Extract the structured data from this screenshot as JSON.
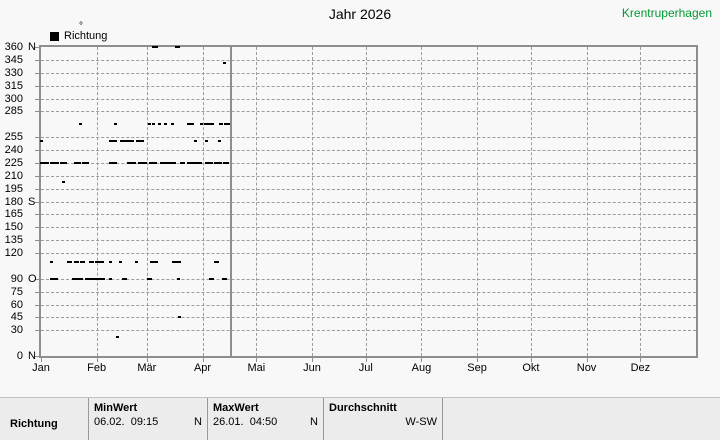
{
  "header": {
    "title": "Jahr 2026",
    "station": "Krentruperhagen",
    "station_color": "#009933",
    "unit": "°",
    "legend": {
      "label": "Richtung",
      "marker_color": "#000000"
    }
  },
  "chart_data": {
    "type": "scatter",
    "title": "Jahr 2026",
    "series_name": "Richtung",
    "ylabel": "°",
    "ylim": [
      0,
      360
    ],
    "x_axis": "day of year, Jan-Dez",
    "xlim_days": [
      0,
      365
    ],
    "grid": true,
    "point_color": "#000000",
    "grid_color": "#9c9c9c",
    "frame_color": "#8e8e8e",
    "current_date_line_day": 105.5,
    "y_ticks": [
      {
        "value": 360,
        "num": "360",
        "letter": "N"
      },
      {
        "value": 345,
        "num": "345",
        "letter": ""
      },
      {
        "value": 330,
        "num": "330",
        "letter": ""
      },
      {
        "value": 315,
        "num": "315",
        "letter": ""
      },
      {
        "value": 300,
        "num": "300",
        "letter": ""
      },
      {
        "value": 285,
        "num": "285",
        "letter": ""
      },
      {
        "value": 255,
        "num": "255",
        "letter": ""
      },
      {
        "value": 240,
        "num": "240",
        "letter": ""
      },
      {
        "value": 225,
        "num": "225",
        "letter": ""
      },
      {
        "value": 210,
        "num": "210",
        "letter": ""
      },
      {
        "value": 195,
        "num": "195",
        "letter": ""
      },
      {
        "value": 180,
        "num": "180",
        "letter": "S"
      },
      {
        "value": 165,
        "num": "165",
        "letter": ""
      },
      {
        "value": 150,
        "num": "150",
        "letter": ""
      },
      {
        "value": 135,
        "num": "135",
        "letter": ""
      },
      {
        "value": 120,
        "num": "120",
        "letter": ""
      },
      {
        "value": 90,
        "num": "90",
        "letter": "O"
      },
      {
        "value": 75,
        "num": "75",
        "letter": ""
      },
      {
        "value": 60,
        "num": "60",
        "letter": ""
      },
      {
        "value": 45,
        "num": "45",
        "letter": ""
      },
      {
        "value": 30,
        "num": "30",
        "letter": ""
      },
      {
        "value": 0,
        "num": "0",
        "letter": "N"
      }
    ],
    "months": [
      {
        "label": "Jan",
        "day": 0
      },
      {
        "label": "Feb",
        "day": 31
      },
      {
        "label": "Mär",
        "day": 59
      },
      {
        "label": "Apr",
        "day": 90
      },
      {
        "label": "Mai",
        "day": 120
      },
      {
        "label": "Jun",
        "day": 151
      },
      {
        "label": "Jul",
        "day": 181
      },
      {
        "label": "Aug",
        "day": 212
      },
      {
        "label": "Sep",
        "day": 243
      },
      {
        "label": "Okt",
        "day": 273
      },
      {
        "label": "Nov",
        "day": 304
      },
      {
        "label": "Dez",
        "day": 334
      }
    ],
    "segments_format": "[day_from, day_to, direction_deg]",
    "segments": [
      [
        62.5,
        64.5,
        360
      ],
      [
        75,
        77,
        360
      ],
      [
        102,
        102,
        341
      ],
      [
        22,
        22,
        270
      ],
      [
        41,
        41,
        270
      ],
      [
        60,
        60,
        270
      ],
      [
        62.5,
        62.5,
        270
      ],
      [
        66,
        66,
        270
      ],
      [
        69,
        69,
        270
      ],
      [
        73,
        73,
        270
      ],
      [
        82,
        84.5,
        270
      ],
      [
        89,
        89,
        270
      ],
      [
        91.5,
        96,
        270
      ],
      [
        100,
        100.6,
        270
      ],
      [
        102.3,
        104.5,
        270
      ],
      [
        0,
        0.6,
        250
      ],
      [
        38.5,
        42,
        250
      ],
      [
        44.5,
        48,
        250
      ],
      [
        48.6,
        51.5,
        250
      ],
      [
        53.5,
        57,
        250
      ],
      [
        86,
        86,
        250
      ],
      [
        92,
        92,
        250
      ],
      [
        99.3,
        99.3,
        250
      ],
      [
        0,
        3.9,
        225
      ],
      [
        5.6,
        9.5,
        225
      ],
      [
        11.2,
        14,
        225
      ],
      [
        19,
        21.8,
        225
      ],
      [
        23.4,
        26.2,
        225
      ],
      [
        38.5,
        41.9,
        225
      ],
      [
        48.5,
        52.5,
        225
      ],
      [
        54.7,
        58.6,
        225
      ],
      [
        60.8,
        64.2,
        225
      ],
      [
        67,
        74.8,
        225
      ],
      [
        78.1,
        79.8,
        225
      ],
      [
        82,
        85.4,
        225
      ],
      [
        86.5,
        89.3,
        225
      ],
      [
        92,
        95.4,
        225
      ],
      [
        97.1,
        100.4,
        225
      ],
      [
        102.1,
        104.4,
        225
      ],
      [
        12,
        12,
        203
      ],
      [
        5.6,
        5.6,
        110
      ],
      [
        15,
        16.5,
        110
      ],
      [
        19,
        20.5,
        110
      ],
      [
        22.3,
        24,
        110
      ],
      [
        27.3,
        29,
        110
      ],
      [
        30.7,
        31.5,
        110
      ],
      [
        33,
        34.6,
        110
      ],
      [
        38.5,
        38.5,
        110
      ],
      [
        44,
        44,
        110
      ],
      [
        53,
        53,
        110
      ],
      [
        61.4,
        64.7,
        110
      ],
      [
        73.7,
        74.5,
        110
      ],
      [
        76,
        77.6,
        110
      ],
      [
        97.1,
        98.8,
        110
      ],
      [
        5.6,
        7,
        90
      ],
      [
        8,
        9,
        90
      ],
      [
        17.9,
        19.5,
        90
      ],
      [
        20.5,
        22.9,
        90
      ],
      [
        25.1,
        27,
        90
      ],
      [
        28,
        30.1,
        90
      ],
      [
        31,
        33.5,
        90
      ],
      [
        34,
        35.2,
        90
      ],
      [
        38.5,
        38.5,
        90
      ],
      [
        45.8,
        47.4,
        90
      ],
      [
        59.7,
        61.4,
        90
      ],
      [
        76.5,
        76.5,
        90
      ],
      [
        94.3,
        96,
        90
      ],
      [
        101.6,
        103.2,
        90
      ],
      [
        77,
        77,
        45
      ],
      [
        42.4,
        42.4,
        22
      ]
    ]
  },
  "table": {
    "row_label": "Richtung",
    "columns": [
      {
        "header": "MinWert",
        "value": "06.02.  09:15",
        "unit": "N"
      },
      {
        "header": "MaxWert",
        "value": "26.01.  04:50",
        "unit": "N"
      },
      {
        "header": "Durchschnitt",
        "value": "W-SW"
      }
    ]
  }
}
